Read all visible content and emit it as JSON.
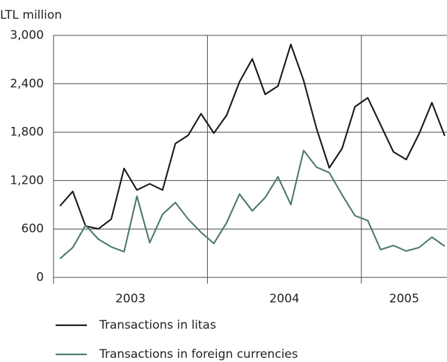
{
  "chart_data": {
    "type": "line",
    "y_axis_label": "LTL million",
    "categories": [
      "2003",
      null,
      null,
      null,
      null,
      null,
      null,
      null,
      null,
      null,
      null,
      null,
      "2004",
      null,
      null,
      null,
      null,
      null,
      null,
      null,
      null,
      null,
      null,
      null,
      "2005",
      null,
      null,
      null,
      null,
      null,
      null
    ],
    "series": [
      {
        "name": "Transactions in litas",
        "color": "#1a1a1a",
        "values": [
          885,
          1066,
          636,
          602,
          722,
          1350,
          1083,
          1160,
          1083,
          1659,
          1762,
          2029,
          1788,
          2011,
          2424,
          2708,
          2269,
          2372,
          2888,
          2441,
          1848,
          1358,
          1599,
          2115,
          2226,
          1891,
          1556,
          1461,
          1779,
          2166,
          1754
        ]
      },
      {
        "name": "Transactions in foreign currencies",
        "color": "#4d7a6a",
        "values": [
          232,
          370,
          645,
          473,
          378,
          318,
          1006,
          430,
          782,
          928,
          722,
          559,
          421,
          679,
          1032,
          825,
          989,
          1246,
          903,
          1573,
          1367,
          1298,
          1023,
          765,
          705,
          344,
          395,
          327,
          370,
          499,
          387
        ]
      }
    ],
    "ylim": [
      0,
      3000
    ],
    "yticks": [
      0,
      600,
      {
        "value": 1200,
        "label": "1,200"
      },
      {
        "value": 1800,
        "label": "1,800"
      },
      {
        "value": 2400,
        "label": "2,400"
      },
      {
        "value": 3000,
        "label": "3,000"
      }
    ],
    "grid": true
  }
}
